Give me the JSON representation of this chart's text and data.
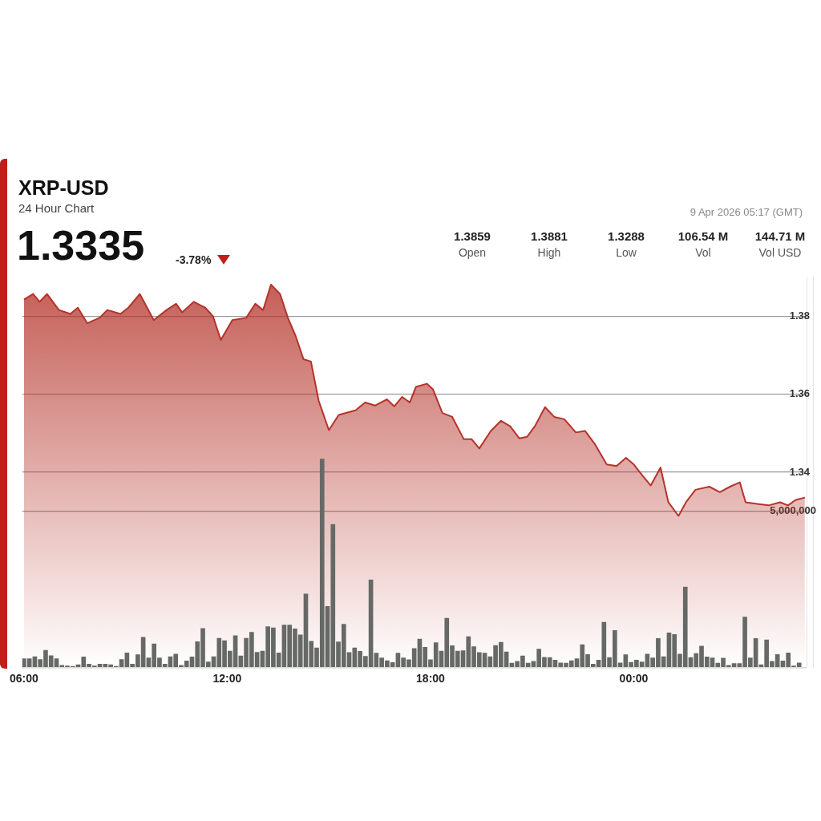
{
  "chart_data": {
    "type": "area",
    "title": "XRP-USD",
    "subtitle": "24 Hour Chart",
    "annotations": [
      "1.3335",
      "-3.78%",
      "1.3859",
      "Open",
      "1.3881",
      "High",
      "1.3288",
      "Low",
      "106.54 M",
      "Vol",
      "144.71 M",
      "Vol USD",
      "9 Apr 2026 05:17 (GMT)"
    ],
    "xlim": [
      5.95,
      29.1
    ],
    "xticks": [
      {
        "value": 6,
        "label": "06:00"
      },
      {
        "value": 12,
        "label": "12:00"
      },
      {
        "value": 18,
        "label": "18:00"
      },
      {
        "value": 24,
        "label": "00:00"
      }
    ],
    "ylim": [
      1.29,
      1.39
    ],
    "yticks": [
      1.34,
      1.36,
      1.38
    ],
    "y2lim": [
      0,
      12500000
    ],
    "y2ticks": [
      {
        "value": 0,
        "label": null
      },
      {
        "value": 5000000,
        "label": "5,000,000"
      }
    ],
    "grid": "y",
    "legend": false,
    "marker": "none",
    "series": [
      {
        "color": "#b5332a",
        "x": [
          6,
          6.27,
          6.46,
          6.68,
          7.03,
          7.37,
          7.59,
          7.87,
          8.23,
          8.46,
          8.85,
          9.08,
          9.42,
          9.83,
          10.21,
          10.49,
          10.67,
          11.01,
          11.35,
          11.58,
          11.81,
          12.15,
          12.56,
          12.83,
          13.06,
          13.29,
          13.56,
          13.79,
          14.02,
          14.25,
          14.47,
          14.7,
          15,
          15.29,
          15.79,
          16.07,
          16.36,
          16.71,
          16.93,
          17.16,
          17.39,
          17.57,
          17.89,
          18.07,
          18.35,
          18.64,
          18.98,
          19.21,
          19.44,
          19.78,
          20.08,
          20.35,
          20.62,
          20.85,
          21.08,
          21.38,
          21.65,
          21.95,
          22.29,
          22.56,
          22.86,
          23.2,
          23.49,
          23.77,
          24,
          24.27,
          24.5,
          24.79,
          25.02,
          25.32,
          25.54,
          25.82,
          26.23,
          26.54,
          26.84,
          27.13,
          27.3,
          27.64,
          27.98,
          28.32,
          28.55,
          28.78,
          29.05
        ],
        "values": [
          1.3843,
          1.3857,
          1.3837,
          1.3857,
          1.3816,
          1.3806,
          1.3822,
          1.3782,
          1.3796,
          1.3816,
          1.3806,
          1.3822,
          1.3857,
          1.379,
          1.3816,
          1.3832,
          1.381,
          1.3837,
          1.3822,
          1.38,
          1.3739,
          1.379,
          1.3796,
          1.3832,
          1.3816,
          1.3881,
          1.3857,
          1.3796,
          1.3749,
          1.369,
          1.3684,
          1.3583,
          1.3508,
          1.3547,
          1.3559,
          1.3579,
          1.3571,
          1.3587,
          1.3569,
          1.3593,
          1.3579,
          1.3619,
          1.3627,
          1.3613,
          1.3552,
          1.3542,
          1.3485,
          1.3485,
          1.3461,
          1.3506,
          1.3532,
          1.3518,
          1.3487,
          1.3491,
          1.3518,
          1.3567,
          1.3542,
          1.3536,
          1.3502,
          1.3506,
          1.3471,
          1.342,
          1.3416,
          1.3437,
          1.342,
          1.339,
          1.3366,
          1.3412,
          1.3323,
          1.3288,
          1.3323,
          1.3355,
          1.3363,
          1.3349,
          1.3363,
          1.3374,
          1.3323,
          1.3319,
          1.3315,
          1.3323,
          1.3315,
          1.3329,
          1.3335
        ]
      },
      {
        "type": "bar",
        "axis": "y2",
        "color": "#666966",
        "x": [
          6,
          6.16,
          6.32,
          6.48,
          6.64,
          6.8,
          6.96,
          7.12,
          7.28,
          7.44,
          7.6,
          7.76,
          7.92,
          8.08,
          8.24,
          8.4,
          8.56,
          8.72,
          8.88,
          9.04,
          9.2,
          9.36,
          9.52,
          9.68,
          9.84,
          10,
          10.16,
          10.32,
          10.48,
          10.64,
          10.8,
          10.96,
          11.12,
          11.28,
          11.44,
          11.6,
          11.76,
          11.92,
          12.08,
          12.24,
          12.4,
          12.56,
          12.72,
          12.88,
          13.04,
          13.2,
          13.36,
          13.52,
          13.68,
          13.84,
          14,
          14.16,
          14.32,
          14.48,
          14.64,
          14.8,
          14.96,
          15.12,
          15.28,
          15.44,
          15.6,
          15.76,
          15.92,
          16.08,
          16.24,
          16.4,
          16.56,
          16.72,
          16.88,
          17.04,
          17.2,
          17.36,
          17.52,
          17.68,
          17.84,
          18,
          18.16,
          18.32,
          18.48,
          18.64,
          18.8,
          18.96,
          19.12,
          19.28,
          19.44,
          19.6,
          19.76,
          19.92,
          20.08,
          20.24,
          20.4,
          20.56,
          20.72,
          20.88,
          21.04,
          21.2,
          21.36,
          21.52,
          21.68,
          21.84,
          22,
          22.16,
          22.32,
          22.48,
          22.64,
          22.8,
          22.96,
          23.12,
          23.28,
          23.44,
          23.6,
          23.76,
          23.92,
          24.08,
          24.24,
          24.4,
          24.56,
          24.72,
          24.88,
          25.04,
          25.2,
          25.36,
          25.52,
          25.68,
          25.84,
          26,
          26.16,
          26.32,
          26.48,
          26.64,
          26.8,
          26.96,
          27.12,
          27.28,
          27.44,
          27.6,
          27.76,
          27.92,
          28.08,
          28.24,
          28.4,
          28.56,
          28.72,
          28.88
        ],
        "values": [
          270000,
          270000,
          340000,
          250000,
          540000,
          370000,
          270000,
          60000,
          40000,
          30000,
          80000,
          330000,
          100000,
          40000,
          100000,
          100000,
          80000,
          30000,
          250000,
          460000,
          100000,
          400000,
          960000,
          300000,
          750000,
          300000,
          100000,
          340000,
          420000,
          60000,
          200000,
          330000,
          820000,
          1240000,
          170000,
          340000,
          930000,
          850000,
          520000,
          1010000,
          360000,
          930000,
          1120000,
          480000,
          520000,
          1300000,
          1260000,
          460000,
          1350000,
          1350000,
          1230000,
          1040000,
          2350000,
          830000,
          620000,
          6670000,
          1950000,
          4580000,
          810000,
          1380000,
          470000,
          620000,
          510000,
          350000,
          2800000,
          450000,
          300000,
          210000,
          150000,
          450000,
          300000,
          240000,
          600000,
          900000,
          640000,
          240000,
          790000,
          520000,
          1570000,
          690000,
          520000,
          530000,
          980000,
          660000,
          470000,
          450000,
          340000,
          700000,
          800000,
          490000,
          130000,
          190000,
          360000,
          130000,
          190000,
          580000,
          320000,
          310000,
          230000,
          140000,
          130000,
          210000,
          270000,
          720000,
          410000,
          100000,
          230000,
          1440000,
          310000,
          1180000,
          140000,
          400000,
          160000,
          230000,
          170000,
          420000,
          300000,
          920000,
          340000,
          1100000,
          1050000,
          420000,
          2570000,
          310000,
          440000,
          680000,
          330000,
          300000,
          130000,
          290000,
          60000,
          120000,
          120000,
          1610000,
          300000,
          920000,
          80000,
          880000,
          190000,
          410000,
          200000,
          460000,
          40000,
          140000
        ]
      }
    ]
  }
}
